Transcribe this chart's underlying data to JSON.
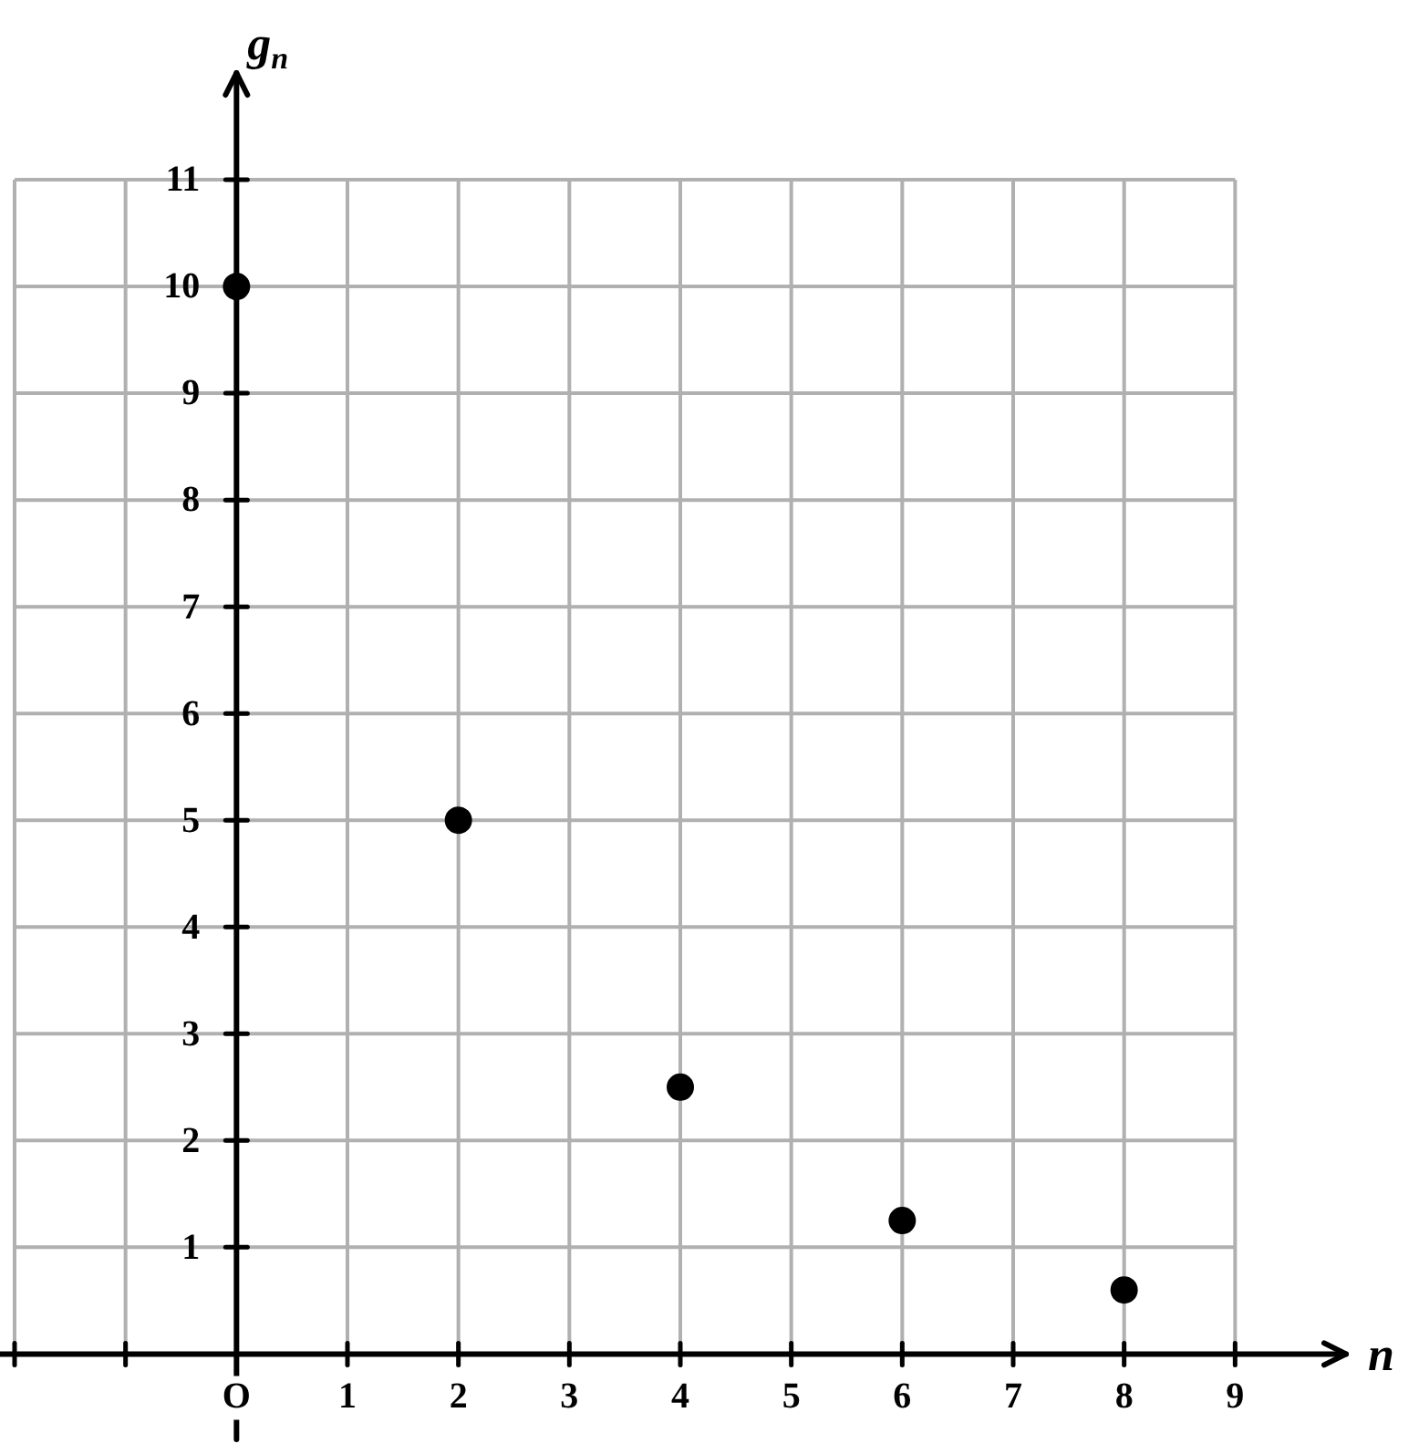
{
  "chart_data": {
    "type": "scatter",
    "xlabel": "n",
    "ylabel": "g$_{n}$",
    "x": [
      0,
      2,
      4,
      6,
      8
    ],
    "values": [
      10,
      5,
      2.5,
      1.25,
      0.6
    ],
    "color": "#000000",
    "marker": "circle",
    "xlim": [
      -2,
      10
    ],
    "ylim": [
      -0.8,
      12
    ],
    "xticks": [
      {
        "value": -2,
        "label": null
      },
      {
        "value": -1,
        "label": null
      },
      {
        "value": 0,
        "label": "O"
      },
      1,
      2,
      3,
      4,
      5,
      6,
      7,
      8,
      9
    ],
    "yticks": [
      1,
      2,
      3,
      4,
      5,
      6,
      7,
      8,
      9,
      10,
      11
    ],
    "grid": true,
    "legend": false
  }
}
